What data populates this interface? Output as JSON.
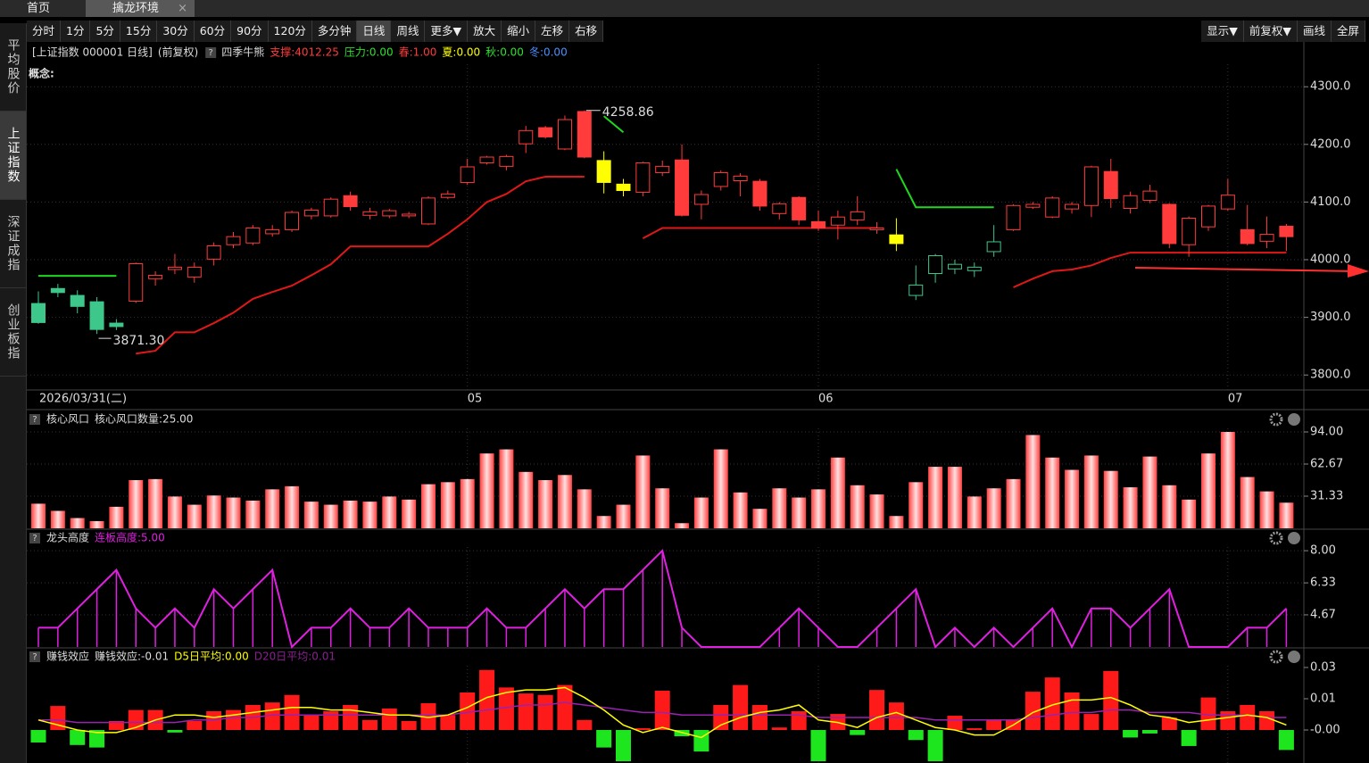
{
  "tabs": [
    "首页",
    "擒龙环境"
  ],
  "toolbar": {
    "periods": [
      "分时",
      "1分",
      "5分",
      "15分",
      "30分",
      "60分",
      "90分",
      "120分",
      "多分钟",
      "日线",
      "周线",
      "更多▼",
      "放大",
      "缩小",
      "左移",
      "右移"
    ],
    "active": "日线",
    "right": [
      "显示▼",
      "前复权▼",
      "画线",
      "全屏"
    ]
  },
  "sidebar": {
    "items": [
      "平均股价",
      "上证指数",
      "深证成指",
      "创业板指"
    ],
    "active": "上证指数"
  },
  "chart_data": [
    {
      "type": "candlestick",
      "title": "[上证指数 000001 日线]",
      "adjust": "(前复权)",
      "indicator": "四季牛熊",
      "concept": "概念:",
      "items": [
        {
          "text": "支撑:4012.25",
          "color": "#ff3b3b"
        },
        {
          "text": "压力:0.00",
          "color": "#2ee02e"
        },
        {
          "text": "春:1.00",
          "color": "#ff3b3b"
        },
        {
          "text": "夏:0.00",
          "color": "#ffff00"
        },
        {
          "text": "秋:0.00",
          "color": "#2ee02e"
        },
        {
          "text": "冬:0.00",
          "color": "#4a90ff"
        }
      ],
      "categories": [
        "2026/03/31(二)",
        null,
        null,
        null,
        null,
        null,
        null,
        null,
        null,
        null,
        null,
        null,
        null,
        null,
        null,
        null,
        null,
        null,
        null,
        null,
        null,
        null,
        "05",
        null,
        null,
        null,
        null,
        null,
        null,
        null,
        null,
        null,
        null,
        null,
        null,
        null,
        null,
        null,
        null,
        null,
        "06",
        null,
        null,
        null,
        null,
        null,
        null,
        null,
        null,
        null,
        null,
        null,
        null,
        null,
        null,
        null,
        null,
        null,
        null,
        null,
        null,
        "07",
        null,
        null,
        null
      ],
      "open": [
        3924,
        3950,
        3938,
        3927,
        3890,
        3928,
        3967,
        3983,
        3970,
        4001,
        4026,
        4029,
        4045,
        4052,
        4076,
        4076,
        4111,
        4077,
        4076,
        4076,
        4062,
        4108,
        4134,
        4168,
        4162,
        4201,
        4229,
        4192,
        4257,
        4172,
        4131,
        4117,
        4151,
        4173,
        4096,
        4127,
        4137,
        4136,
        4080,
        4108,
        4066,
        4060,
        4069,
        4052,
        4043,
        3938,
        3976,
        3984,
        3981,
        4014,
        4052,
        4091,
        4074,
        4088,
        4094,
        4153,
        4089,
        4103,
        4096,
        4026,
        4057,
        4088,
        4052,
        4032,
        4058
      ],
      "high": [
        3945,
        3958,
        3947,
        3935,
        3897,
        3995,
        3980,
        4010,
        3995,
        4030,
        4048,
        4060,
        4060,
        4085,
        4090,
        4108,
        4118,
        4090,
        4088,
        4083,
        4110,
        4120,
        4175,
        4180,
        4182,
        4232,
        4232,
        4250,
        4258.86,
        4188,
        4140,
        4170,
        4172,
        4200,
        4120,
        4155,
        4150,
        4140,
        4100,
        4110,
        4085,
        4085,
        4110,
        4065,
        4072,
        3990,
        4010,
        4000,
        3995,
        4060,
        4096,
        4100,
        4110,
        4100,
        4163,
        4175,
        4118,
        4130,
        4098,
        4075,
        4095,
        4140,
        4095,
        4075,
        4062
      ],
      "low": [
        3889,
        3935,
        3907,
        3871.3,
        3878,
        3925,
        3955,
        3975,
        3960,
        3990,
        4020,
        4025,
        4040,
        4048,
        4070,
        4073,
        4085,
        4070,
        4072,
        4072,
        4060,
        4105,
        4130,
        4165,
        4155,
        4185,
        4210,
        4190,
        4176,
        4115,
        4110,
        4110,
        4145,
        4075,
        4070,
        4120,
        4110,
        4085,
        4070,
        4060,
        4050,
        4035,
        4060,
        4045,
        4015,
        3930,
        3960,
        3975,
        3970,
        4005,
        4050,
        4088,
        4072,
        4080,
        4074,
        4090,
        4080,
        4098,
        4020,
        4005,
        4050,
        4085,
        4025,
        4020,
        4015
      ],
      "close": [
        3891,
        3943,
        3919,
        3879,
        3884,
        3993,
        3973,
        3987,
        3987,
        4024,
        4040,
        4055,
        4052,
        4082,
        4086,
        4105,
        4092,
        4083,
        4085,
        4079,
        4107,
        4114,
        4161,
        4178,
        4179,
        4224,
        4213,
        4243,
        4178,
        4134,
        4120,
        4168,
        4162,
        4077,
        4113,
        4151,
        4145,
        4093,
        4097,
        4069,
        4055,
        4074,
        4083,
        4055,
        4028,
        3956,
        4007,
        3992,
        3987,
        4031,
        4094,
        4096,
        4107,
        4096,
        4161,
        4106,
        4111,
        4119,
        4028,
        4072,
        4093,
        4112,
        4028,
        4044,
        4040
      ],
      "colors": [
        "#3ec78a",
        "#3ec78a",
        "#3ec78a",
        "#3ec78a",
        "#3ec78a",
        "#ff3b3b",
        "#ff3b3b",
        "#ff3b3b",
        "#ff3b3b",
        "#ff3b3b",
        "#ff3b3b",
        "#ff3b3b",
        "#ff3b3b",
        "#ff3b3b",
        "#ff3b3b",
        "#ff3b3b",
        "#ff3b3b",
        "#ff3b3b",
        "#ff3b3b",
        "#ff3b3b",
        "#ff3b3b",
        "#ff3b3b",
        "#ff3b3b",
        "#ff3b3b",
        "#ff3b3b",
        "#ff3b3b",
        "#ff3b3b",
        "#ff3b3b",
        "#ff3b3b",
        "#ffff00",
        "#ffff00",
        "#ff3b3b",
        "#ff3b3b",
        "#ff3b3b",
        "#ff3b3b",
        "#ff3b3b",
        "#ff3b3b",
        "#ff3b3b",
        "#ff3b3b",
        "#ff3b3b",
        "#ff3b3b",
        "#ff3b3b",
        "#ff3b3b",
        "#ff3b3b",
        "#ffff00",
        "#3ec78a",
        "#3ec78a",
        "#3ec78a",
        "#3ec78a",
        "#3ec78a",
        "#ff3b3b",
        "#ff3b3b",
        "#ff3b3b",
        "#ff3b3b",
        "#ff3b3b",
        "#ff3b3b",
        "#ff3b3b",
        "#ff3b3b",
        "#ff3b3b",
        "#ff3b3b",
        "#ff3b3b",
        "#ff3b3b",
        "#ff3b3b",
        "#ff3b3b",
        "#ff3b3b"
      ],
      "series": [
        {
          "color": "#e01818",
          "values": [
            null,
            null,
            null,
            null,
            null,
            3837,
            3842,
            3874,
            3874,
            3890,
            3908,
            3932,
            3944,
            3955,
            3973,
            3992,
            4023,
            4023,
            4023,
            4023,
            4023,
            4045,
            4070,
            4100,
            4114,
            4136,
            4144,
            4144,
            4144,
            null,
            null,
            4037,
            4055,
            4055,
            4055,
            4055,
            4055,
            4055,
            4055,
            4055,
            4055,
            4055,
            4055,
            4055,
            null,
            null,
            null,
            null,
            null,
            null,
            3952,
            3967,
            3980,
            3983,
            3990,
            4003,
            4012.25,
            4012.25,
            4012.25,
            4012.25,
            4012.25,
            4012.25,
            4012.25,
            4012.25,
            4012.25
          ]
        },
        {
          "color": "#1ed81e",
          "values": [
            3972,
            3972,
            3972,
            3972,
            3972,
            null,
            null,
            null,
            null,
            null,
            null,
            null,
            null,
            null,
            null,
            null,
            null,
            null,
            null,
            null,
            null,
            null,
            null,
            null,
            null,
            null,
            null,
            null,
            null,
            4249,
            4221,
            null,
            null,
            null,
            null,
            null,
            null,
            null,
            null,
            null,
            null,
            null,
            null,
            null,
            4157,
            4091,
            4091,
            4091,
            4091,
            4091,
            null,
            null,
            null,
            null,
            null,
            null,
            null,
            null,
            null,
            null,
            null,
            null,
            null,
            null,
            null
          ]
        }
      ],
      "max_label": "4258.86",
      "min_label": "3871.30",
      "ylim": [
        3774,
        4339
      ],
      "yticks": [
        {
          "value": 4300,
          "label": "4300.0"
        },
        {
          "value": 4200,
          "label": "4200.0"
        },
        {
          "value": 4100,
          "label": "4100.0"
        },
        {
          "value": 4000,
          "label": "4000.0"
        },
        {
          "value": 3900,
          "label": "3900.0"
        },
        {
          "value": 3800,
          "label": "3800.0"
        }
      ],
      "grid": true
    },
    {
      "type": "bar",
      "title": "核心风口",
      "items": [
        {
          "text": "核心风口数量:25.00",
          "color": "#dddddd"
        }
      ],
      "values": [
        24,
        17,
        10,
        7,
        21,
        47,
        48,
        31,
        23,
        32,
        30,
        27,
        38,
        41,
        26,
        23,
        27,
        26,
        31,
        28,
        43,
        45,
        48,
        73,
        77,
        55,
        47,
        52,
        38,
        12,
        23,
        71,
        39,
        5,
        30,
        77,
        35,
        19,
        39,
        30,
        38,
        69,
        42,
        33,
        12,
        45,
        60,
        60,
        31,
        39,
        48,
        91,
        69,
        57,
        71,
        56,
        40,
        70,
        42,
        28,
        73,
        94,
        50,
        36,
        25
      ],
      "color": "#ff4040",
      "ylim": [
        0,
        97.5
      ],
      "yticks": [
        {
          "value": 94,
          "label": "94.00"
        },
        62.67,
        31.33
      ],
      "grid": true
    },
    {
      "type": "stick_line",
      "title": "龙头高度",
      "items": [
        {
          "text": "连板高度:5.00",
          "color": "#e020e0"
        }
      ],
      "values": [
        4,
        4,
        5,
        6,
        7,
        5,
        4,
        5,
        4,
        6,
        5,
        6,
        7,
        3,
        4,
        4,
        5,
        4,
        4,
        5,
        4,
        4,
        4,
        5,
        4,
        4,
        5,
        6,
        5,
        6,
        6,
        7,
        8,
        4,
        3,
        3,
        3,
        3,
        4,
        5,
        4,
        3,
        3,
        4,
        5,
        6,
        3,
        4,
        3,
        4,
        3,
        4,
        5,
        3,
        5,
        5,
        4,
        5,
        6,
        3,
        3,
        3,
        4,
        4,
        5
      ],
      "color": "#e020e0",
      "ylim": [
        3,
        8.19
      ],
      "yticks": [
        {
          "value": 8,
          "label": "8.00"
        },
        6.33,
        4.67
      ],
      "grid": true
    },
    {
      "type": "bar_line",
      "title": "赚钱效应",
      "items": [
        {
          "text": "赚钱效应:-0.01",
          "color": "#dddddd"
        },
        {
          "text": "D5日平均:0.00",
          "color": "#ffff00"
        },
        {
          "text": "D20日平均:0.01",
          "color": "#8a2090"
        }
      ],
      "values": [
        -0.005,
        0.0096,
        -0.006,
        -0.007,
        0.0036,
        0.008,
        0.008,
        -0.001,
        0.0036,
        0.0075,
        0.008,
        0.01,
        0.011,
        0.014,
        0.006,
        0.0075,
        0.01,
        0.004,
        0.0086,
        0.0036,
        0.0107,
        0.006,
        0.015,
        0.024,
        0.017,
        0.0146,
        0.014,
        0.018,
        0.004,
        -0.007,
        -0.0125,
        0.0007,
        0.0157,
        -0.0025,
        -0.0086,
        0.01,
        0.018,
        0.01,
        0.001,
        0.0075,
        -0.0125,
        0.0064,
        -0.002,
        0.016,
        0.011,
        -0.004,
        -0.0125,
        0.0057,
        0.0007,
        0.004,
        0.004,
        0.0153,
        0.021,
        0.015,
        0.0064,
        0.0236,
        -0.003,
        -0.0014,
        0.005,
        -0.0064,
        0.013,
        0.0075,
        0.01,
        0.0075,
        -0.008
      ],
      "up_color": "#ff1a1a",
      "down_color": "#1ee61e",
      "series": [
        {
          "color": "#ffff00",
          "values": [
            0.004,
            0.002,
            0,
            -0.001,
            -0.001,
            0.001,
            0.004,
            0.006,
            0.006,
            0.005,
            0.006,
            0.007,
            0.008,
            0.009,
            0.009,
            0.008,
            0.008,
            0.007,
            0.006,
            0.006,
            0.005,
            0.006,
            0.009,
            0.013,
            0.015,
            0.016,
            0.016,
            0.017,
            0.013,
            0.008,
            0.002,
            -0.001,
            0.001,
            -0.001,
            -0.003,
            0.002,
            0.005,
            0.007,
            0.008,
            0.01,
            0.004,
            0.003,
            0.001,
            0.005,
            0.007,
            0.004,
            0.001,
            0,
            -0.002,
            -0.002,
            0.002,
            0.007,
            0.01,
            0.012,
            0.012,
            0.013,
            0.01,
            0.006,
            0.005,
            0.003,
            0.004,
            0.005,
            0.006,
            0.005,
            0.002
          ]
        },
        {
          "color": "#9a22b0",
          "values": [
            0.004,
            0.004,
            0.003,
            0.003,
            0.003,
            0.003,
            0.003,
            0.003,
            0.004,
            0.004,
            0.005,
            0.005,
            0.006,
            0.006,
            0.006,
            0.006,
            0.006,
            0.006,
            0.006,
            0.006,
            0.006,
            0.006,
            0.007,
            0.008,
            0.009,
            0.01,
            0.01,
            0.011,
            0.01,
            0.009,
            0.008,
            0.007,
            0.007,
            0.006,
            0.006,
            0.006,
            0.006,
            0.006,
            0.006,
            0.006,
            0.005,
            0.005,
            0.005,
            0.005,
            0.005,
            0.005,
            0.004,
            0.004,
            0.004,
            0.004,
            0.004,
            0.005,
            0.006,
            0.007,
            0.007,
            0.008,
            0.008,
            0.007,
            0.007,
            0.007,
            0.006,
            0.006,
            0.006,
            0.005,
            0.005
          ]
        }
      ],
      "ylim": [
        -0.0132,
        0.0257
      ],
      "yticks": [
        {
          "value": 0.025,
          "label": "0.03"
        },
        {
          "value": 0.0125,
          "label": "0.01"
        },
        {
          "value": 0,
          "label": "-0.00"
        }
      ],
      "grid": false
    }
  ]
}
